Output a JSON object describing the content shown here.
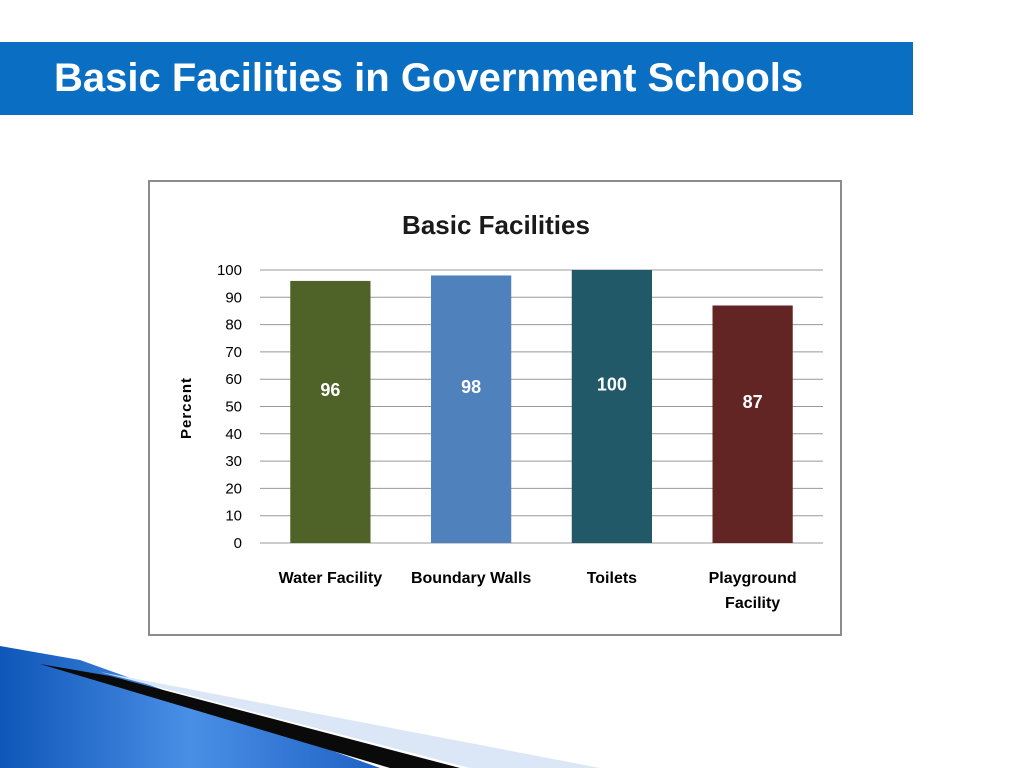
{
  "slide": {
    "title": "Basic Facilities in Government Schools"
  },
  "colors": {
    "title_bar": "#0a6fc2",
    "title_text": "#ffffff",
    "gridline": "#999999",
    "frame": "#8c8c8c"
  },
  "chart_data": {
    "type": "bar",
    "title": "Basic Facilities",
    "xlabel": "",
    "ylabel": "Percent",
    "categories": [
      "Water Facility",
      "Boundary Walls",
      "Toilets",
      "Playground Facility"
    ],
    "category_label_lines": [
      [
        "Water Facility"
      ],
      [
        "Boundary Walls"
      ],
      [
        "Toilets"
      ],
      [
        "Playground",
        "Facility"
      ]
    ],
    "values": [
      96,
      98,
      100,
      87
    ],
    "data_labels": [
      "96",
      "98",
      "100",
      "87"
    ],
    "bar_colors": [
      "#4f6228",
      "#4f81bd",
      "#215968",
      "#632523"
    ],
    "ylim": [
      0,
      100
    ],
    "yticks": [
      0,
      10,
      20,
      30,
      40,
      50,
      60,
      70,
      80,
      90,
      100
    ],
    "grid": true,
    "legend": "none"
  }
}
